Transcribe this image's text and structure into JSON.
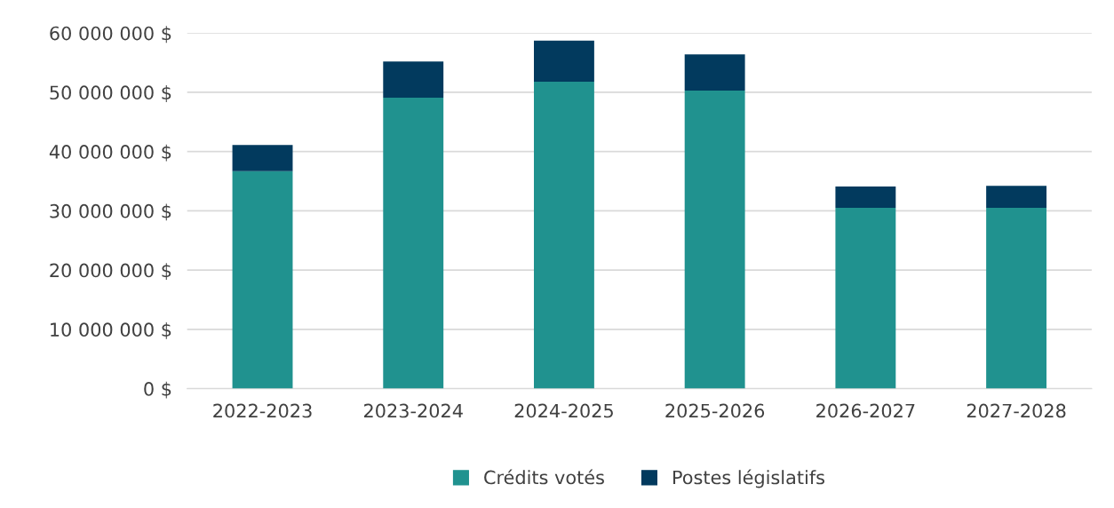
{
  "chart_data": {
    "type": "bar",
    "stacked": true,
    "categories": [
      "2022-2023",
      "2023-2024",
      "2024-2025",
      "2025-2026",
      "2026-2027",
      "2027-2028"
    ],
    "series": [
      {
        "name": "Crédits votés",
        "color": "#20928f",
        "values": [
          36700000,
          49100000,
          51800000,
          50300000,
          30500000,
          30500000
        ]
      },
      {
        "name": "Postes législatifs",
        "color": "#023a5e",
        "values": [
          4400000,
          6100000,
          6900000,
          6100000,
          3600000,
          3700000
        ]
      }
    ],
    "ylim": [
      0,
      60000000
    ],
    "yticks": [
      {
        "value": 0,
        "label": "0 $"
      },
      {
        "value": 10000000,
        "label": "10 000 000 $"
      },
      {
        "value": 20000000,
        "label": "20 000 000 $"
      },
      {
        "value": 30000000,
        "label": "30 000 000 $"
      },
      {
        "value": 40000000,
        "label": "40 000 000 $"
      },
      {
        "value": 50000000,
        "label": "50 000 000 $"
      },
      {
        "value": 60000000,
        "label": "60 000 000 $"
      }
    ],
    "grid": "y",
    "legend": "bottom"
  }
}
